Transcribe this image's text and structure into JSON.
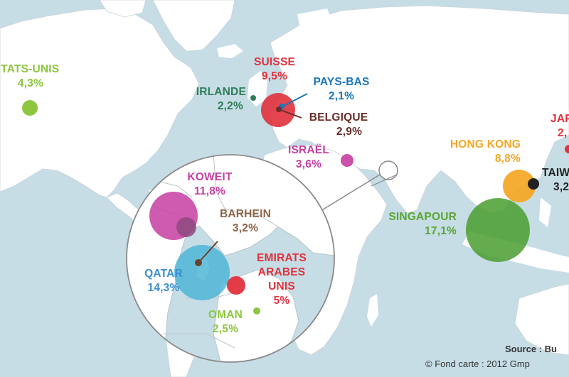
{
  "labels": {
    "etats_unis": {
      "name": "ÉTATS-UNIS",
      "value": "4,3%"
    },
    "suisse": {
      "name": "SUISSE",
      "value": "9,5%"
    },
    "pays_bas": {
      "name": "PAYS-BAS",
      "value": "2,1%"
    },
    "irlande": {
      "name": "IRLANDE",
      "value": "2,2%"
    },
    "belgique": {
      "name": "BELGIQUE",
      "value": "2,9%"
    },
    "israel": {
      "name": "ISRAËL",
      "value": "3,6%"
    },
    "japon": {
      "name": "JAPON",
      "value": "2,"
    },
    "hong_kong": {
      "name": "HONG KONG",
      "value": "8,8%"
    },
    "taiwan": {
      "name": "TAIW",
      "value": "3,2"
    },
    "singapour": {
      "name": "SINGAPOUR",
      "value": "17,1%"
    },
    "koweit": {
      "name": "KOWEIT",
      "value": "11,8%"
    },
    "barhein": {
      "name": "BARHEIN",
      "value": "3,2%"
    },
    "emirats": {
      "line1": "EMIRATS",
      "line2": "ARABES",
      "line3": "UNIS",
      "value": "5%"
    },
    "qatar": {
      "name": "QATAR",
      "value": "14,3%"
    },
    "oman": {
      "name": "OMAN",
      "value": "2,5%"
    }
  },
  "footer": {
    "source": "Source : Bu",
    "credit": "© Fond carte : 2012 Gmp"
  },
  "colors": {
    "sea": "#c6dde6",
    "land": "#ffffff",
    "green": "#8dc63f",
    "red": "#e1313c",
    "blue": "#1b75bc",
    "dark_green": "#2e7d57",
    "brown": "#6b2f2a",
    "magenta": "#c63ea1",
    "orange": "#f5a623",
    "sky": "#4fb6d6",
    "tan": "#8c6448",
    "black": "#222222"
  }
}
